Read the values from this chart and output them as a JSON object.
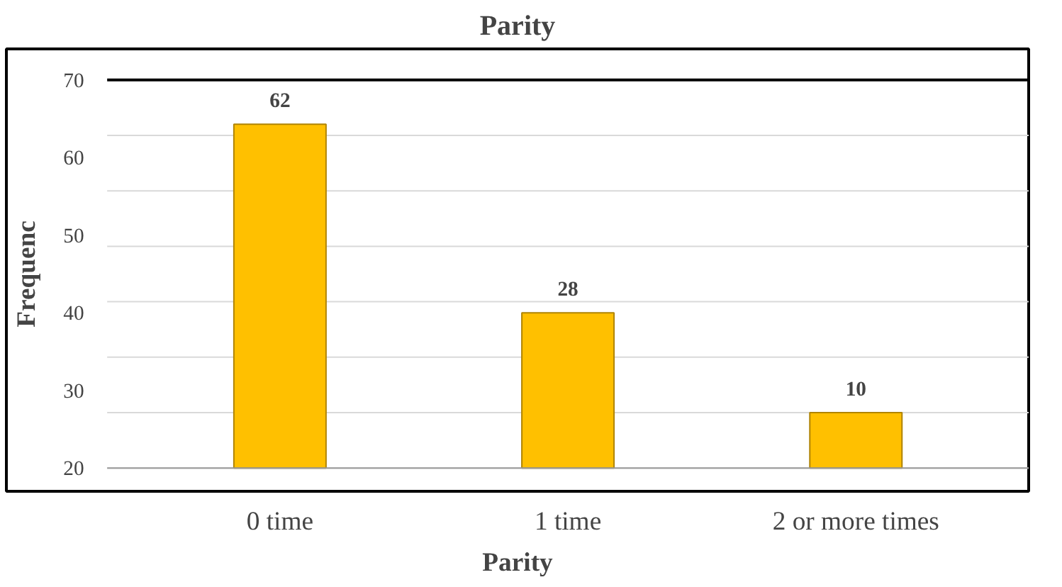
{
  "chart_data": {
    "type": "bar",
    "title": "Parity",
    "xlabel": "Parity",
    "ylabel": "Frequenc",
    "categories": [
      "0 time",
      "1 time",
      "2 or more times"
    ],
    "values": [
      62,
      28,
      10
    ],
    "color": "#ffc000",
    "data_labels": true,
    "ylim": [
      0,
      70
    ],
    "yticks": [
      {
        "value": 0,
        "label": null
      },
      {
        "value": 10,
        "label": null
      },
      {
        "value": 20,
        "label": null
      },
      {
        "value": 30,
        "label": null
      },
      {
        "value": 40,
        "label": null
      },
      {
        "value": 50,
        "label": null
      },
      {
        "value": 60,
        "label": null
      },
      {
        "value": 70,
        "label": null
      }
    ],
    "annotations": [
      "70",
      "60",
      "50",
      "40",
      "30",
      "20"
    ],
    "grid": "y"
  }
}
